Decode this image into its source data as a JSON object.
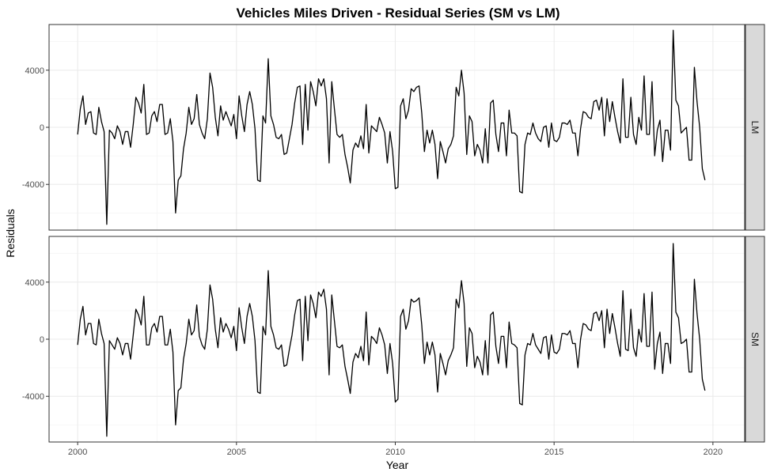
{
  "chart_data": {
    "type": "line",
    "title": "Vehicles Miles Driven - Residual Series (SM vs LM)",
    "xlabel": "Year",
    "ylabel": "Residuals",
    "xlim": [
      1999.1,
      2021.0
    ],
    "ylim": [
      -7200,
      7200
    ],
    "xticks": [
      2000,
      2005,
      2010,
      2015,
      2020
    ],
    "yticks": [
      -4000,
      0,
      4000
    ],
    "grid": true,
    "line_color": "#000000",
    "start_year": 2000,
    "frequency": 12,
    "panels": [
      {
        "strip": "LM",
        "values": [
          -500,
          1300,
          2200,
          200,
          1000,
          1100,
          -400,
          -500,
          1400,
          400,
          -300,
          -6800,
          -200,
          -400,
          -800,
          100,
          -300,
          -1200,
          -300,
          -300,
          -1400,
          200,
          2100,
          1700,
          1000,
          3000,
          -500,
          -400,
          800,
          1100,
          400,
          1600,
          1600,
          -500,
          -400,
          600,
          -1000,
          -6000,
          -3700,
          -3400,
          -1500,
          -400,
          1400,
          200,
          600,
          2300,
          200,
          -400,
          -800,
          600,
          3800,
          2800,
          700,
          -600,
          1500,
          500,
          1100,
          600,
          100,
          900,
          -800,
          2200,
          800,
          -300,
          1600,
          2500,
          1600,
          -100,
          -3700,
          -3800,
          800,
          300,
          4800,
          800,
          200,
          -700,
          -800,
          -500,
          -1900,
          -1800,
          -800,
          200,
          1700,
          2800,
          2900,
          -1200,
          3000,
          -200,
          3200,
          2500,
          1500,
          3400,
          2900,
          3400,
          2000,
          -2500,
          3200,
          1300,
          -500,
          -700,
          -500,
          -1900,
          -2800,
          -3900,
          -1600,
          -1100,
          -1400,
          -600,
          -1500,
          1600,
          -1800,
          100,
          -100,
          -300,
          700,
          200,
          -400,
          -2500,
          -300,
          -1700,
          -4300,
          -4200,
          1500,
          2000,
          600,
          1200,
          2700,
          2500,
          2800,
          2900,
          1000,
          -1700,
          -200,
          -1100,
          -200,
          -1200,
          -3600,
          -1000,
          -1700,
          -2500,
          -1500,
          -1200,
          -600,
          2800,
          2200,
          4000,
          2400,
          -1900,
          800,
          400,
          -2000,
          -1200,
          -1600,
          -2500,
          -100,
          -2500,
          1700,
          1900,
          -500,
          -1700,
          300,
          300,
          -2000,
          1200,
          -400,
          -400,
          -600,
          -4500,
          -4600,
          -1200,
          -400,
          -500,
          300,
          -400,
          -800,
          -1000,
          0,
          100,
          -1400,
          300,
          -900,
          -1000,
          -700,
          300,
          300,
          200,
          500,
          -400,
          -400,
          -2000,
          -100,
          1100,
          1000,
          700,
          600,
          1800,
          1900,
          1200,
          2100,
          -600,
          2000,
          400,
          1800,
          700,
          -300,
          -1100,
          3400,
          -700,
          -700,
          2100,
          -500,
          -1200,
          700,
          -200,
          3600,
          -500,
          -500,
          3200,
          -2000,
          -200,
          500,
          -2400,
          -200,
          -200,
          -1600,
          6800,
          1900,
          1500,
          -400,
          -200,
          0,
          -2300,
          -2300,
          4200,
          1800,
          0,
          -2900,
          -3700
        ]
      },
      {
        "strip": "SM",
        "values": [
          -400,
          1400,
          2300,
          300,
          1100,
          1100,
          -300,
          -400,
          1400,
          400,
          -300,
          -6800,
          -100,
          -400,
          -700,
          100,
          -300,
          -1100,
          -300,
          -300,
          -1400,
          300,
          2100,
          1700,
          1000,
          3000,
          -400,
          -400,
          800,
          1100,
          500,
          1600,
          1600,
          -400,
          -400,
          700,
          -900,
          -6000,
          -3600,
          -3400,
          -1400,
          -300,
          1400,
          300,
          600,
          2400,
          200,
          -400,
          -700,
          700,
          3800,
          2800,
          700,
          -600,
          1500,
          500,
          1100,
          700,
          100,
          900,
          -800,
          2200,
          800,
          -300,
          1600,
          2500,
          1600,
          -100,
          -3700,
          -3800,
          900,
          300,
          4800,
          900,
          300,
          -600,
          -700,
          -400,
          -1900,
          -1800,
          -700,
          300,
          1700,
          2700,
          2800,
          -1500,
          3000,
          -100,
          3100,
          2500,
          1500,
          3300,
          3000,
          3500,
          2100,
          -2500,
          3100,
          1300,
          -500,
          -600,
          -400,
          -1900,
          -2800,
          -3800,
          -1600,
          -1000,
          -1300,
          -500,
          -1500,
          1900,
          -1800,
          200,
          0,
          -300,
          800,
          300,
          -400,
          -2400,
          -300,
          -1700,
          -4400,
          -4200,
          1600,
          2100,
          700,
          1300,
          2800,
          2600,
          2700,
          2900,
          1000,
          -1700,
          -200,
          -1100,
          -200,
          -1100,
          -3700,
          -1000,
          -1700,
          -2500,
          -1500,
          -1100,
          -600,
          2800,
          2200,
          4100,
          2500,
          -1900,
          800,
          400,
          -2000,
          -1200,
          -1600,
          -2500,
          -100,
          -2500,
          1700,
          1900,
          -500,
          -1700,
          200,
          200,
          -2000,
          1200,
          -300,
          -400,
          -600,
          -4500,
          -4600,
          -1100,
          -300,
          -400,
          400,
          -400,
          -700,
          -1000,
          100,
          200,
          -1400,
          300,
          -900,
          -1000,
          -700,
          400,
          400,
          300,
          600,
          -300,
          -300,
          -2000,
          0,
          1100,
          1000,
          700,
          600,
          1800,
          1900,
          1300,
          2000,
          -600,
          2100,
          400,
          1800,
          800,
          -300,
          -1200,
          3400,
          -700,
          -800,
          2100,
          -600,
          -1200,
          700,
          -200,
          3200,
          -500,
          -500,
          3300,
          -2100,
          -300,
          500,
          -2400,
          -300,
          -300,
          -1700,
          6700,
          1900,
          1500,
          -300,
          -200,
          0,
          -2300,
          -2300,
          4200,
          1800,
          0,
          -2800,
          -3600
        ]
      }
    ]
  }
}
